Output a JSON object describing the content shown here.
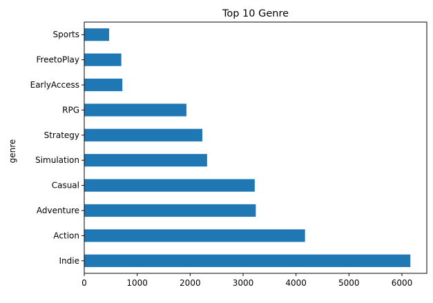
{
  "chart_data": {
    "type": "bar",
    "orientation": "horizontal",
    "title": "Top 10 Genre",
    "xlabel": "",
    "ylabel": "genre",
    "categories": [
      "Indie",
      "Action",
      "Adventure",
      "Casual",
      "Simulation",
      "Strategy",
      "RPG",
      "EarlyAccess",
      "FreetoPlay",
      "Sports"
    ],
    "values": [
      6160,
      4170,
      3240,
      3220,
      2320,
      2230,
      1930,
      720,
      700,
      470
    ],
    "xlim": [
      0,
      6470
    ],
    "xticks": [
      0,
      1000,
      2000,
      3000,
      4000,
      5000,
      6000
    ],
    "grid": false,
    "legend": "none",
    "bar_color": "#1f77b4"
  }
}
